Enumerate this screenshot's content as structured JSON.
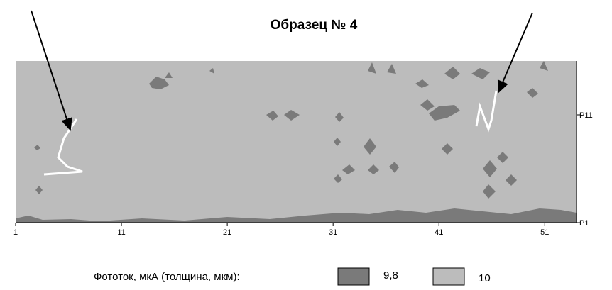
{
  "chart_data": {
    "type": "contour",
    "title": "Образец № 4",
    "xlim": [
      1,
      54
    ],
    "xticks": [
      1,
      11,
      21,
      31,
      41,
      51
    ],
    "ylim": [
      1,
      16
    ],
    "yticks": [
      {
        "value": 1,
        "label": "P1"
      },
      {
        "value": 11,
        "label": "P11"
      }
    ],
    "legend_title": "Фототок, мкА   (толщина, мкм):",
    "levels": [
      {
        "name": "9,8",
        "color": "#7a7a7a"
      },
      {
        "name": "10",
        "color": "#bcbcbc"
      }
    ]
  }
}
